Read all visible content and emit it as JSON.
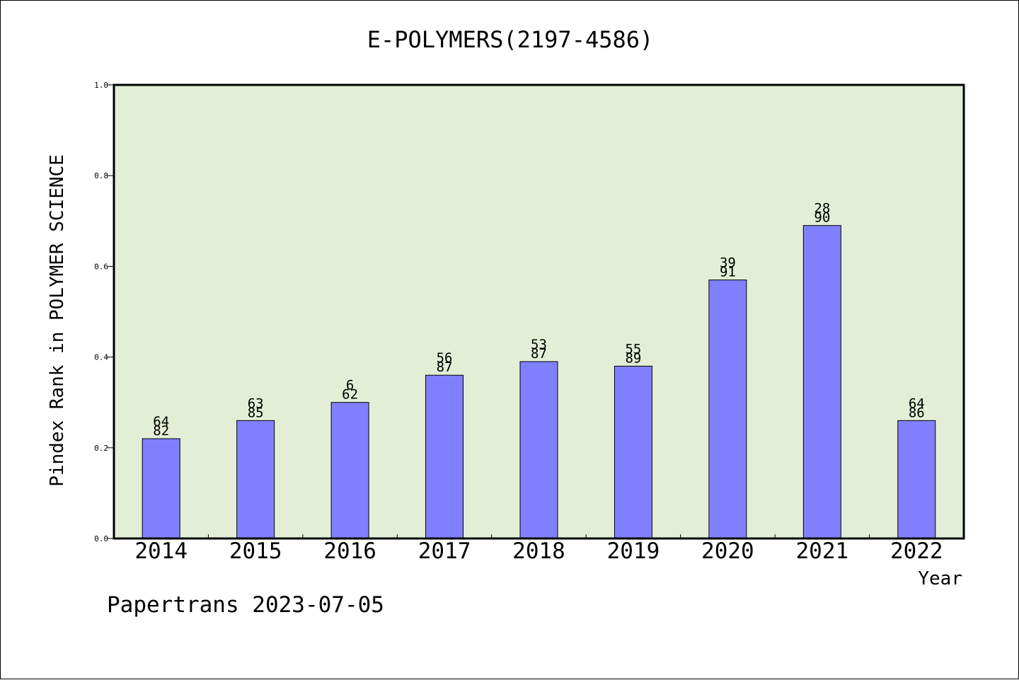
{
  "chart_data": {
    "type": "bar",
    "title": "E-POLYMERS(2197-4586)",
    "xlabel": "Year",
    "ylabel": "Pindex Rank in POLYMER SCIENCE",
    "ylim": [
      0,
      1.0
    ],
    "yticks": [
      "0.0",
      "0.2",
      "0.4",
      "0.6",
      "0.8",
      "1.0"
    ],
    "categories": [
      "2014",
      "2015",
      "2016",
      "2017",
      "2018",
      "2019",
      "2020",
      "2021",
      "2022"
    ],
    "values": [
      0.22,
      0.26,
      0.3,
      0.36,
      0.39,
      0.38,
      0.57,
      0.69,
      0.26
    ],
    "labels_top": [
      "64",
      "63",
      "6",
      "56",
      "53",
      "55",
      "39",
      "28",
      "64"
    ],
    "labels_bottom": [
      "82",
      "85",
      "62",
      "87",
      "87",
      "89",
      "91",
      "90",
      "86"
    ],
    "grid": false,
    "legend": "none",
    "colors": {
      "bar": "#8080ff",
      "plot_bg": "#e2efd6"
    }
  },
  "footer": "Papertrans 2023-07-05"
}
